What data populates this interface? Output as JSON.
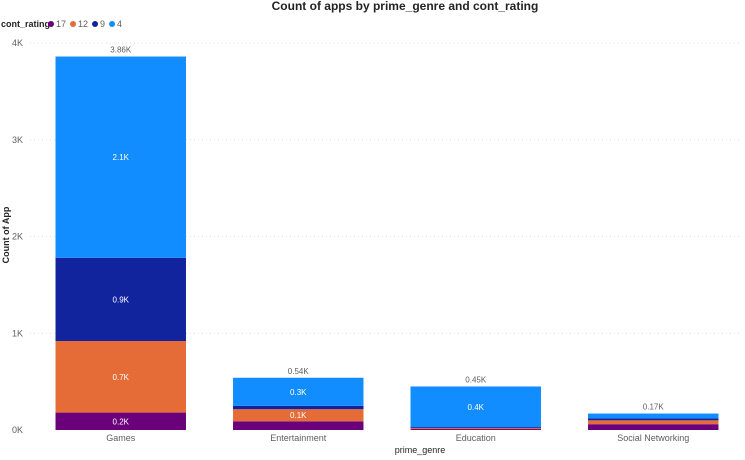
{
  "chart_data": {
    "type": "bar",
    "stacked": true,
    "title": "Count of apps by prime_genre and cont_rating",
    "xlabel": "prime_genre",
    "ylabel": "Count of App",
    "ylim": [
      0,
      4000
    ],
    "yticks": [
      {
        "value": 0,
        "label": "0K"
      },
      {
        "value": 1000,
        "label": "1K"
      },
      {
        "value": 2000,
        "label": "2K"
      },
      {
        "value": 3000,
        "label": "3K"
      },
      {
        "value": 4000,
        "label": "4K"
      }
    ],
    "grid": true,
    "legend": {
      "title": "cont_rating",
      "position": "top-left"
    },
    "categories": [
      "Games",
      "Entertainment",
      "Education",
      "Social Networking"
    ],
    "series": [
      {
        "name": "17",
        "color": "#6b007b",
        "values": [
          180,
          90,
          10,
          60
        ],
        "labels": [
          "0.2K",
          "",
          "",
          ""
        ]
      },
      {
        "name": "12",
        "color": "#e66c37",
        "values": [
          740,
          125,
          10,
          40
        ],
        "labels": [
          "0.7K",
          "0.1K",
          "",
          ""
        ]
      },
      {
        "name": "9",
        "color": "#12239e",
        "values": [
          860,
          35,
          10,
          20
        ],
        "labels": [
          "0.9K",
          "",
          "",
          ""
        ]
      },
      {
        "name": "4",
        "color": "#118dff",
        "values": [
          2080,
          290,
          420,
          50
        ],
        "labels": [
          "2.1K",
          "0.3K",
          "0.4K",
          ""
        ]
      }
    ],
    "totals": [
      "3.86K",
      "0.54K",
      "0.45K",
      "0.17K"
    ]
  }
}
